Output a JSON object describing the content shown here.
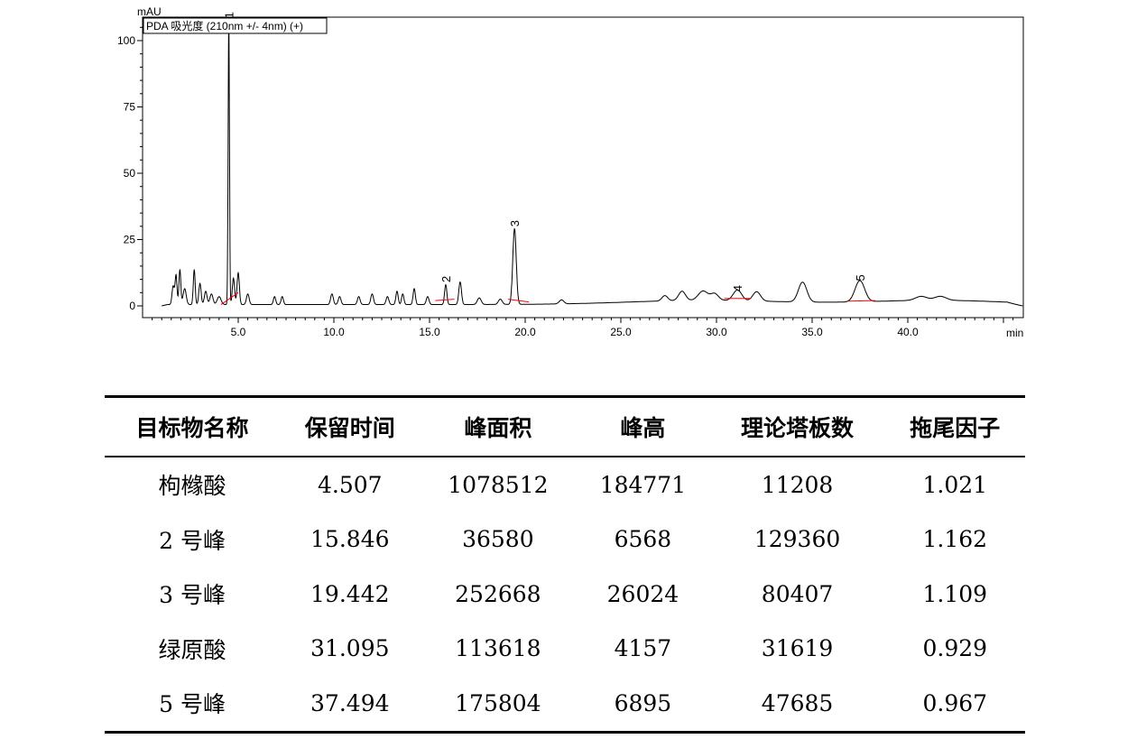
{
  "chart_data": {
    "type": "line",
    "ylabel": "mAU",
    "xlabel": "min",
    "legend": "PDA 吸光度 (210nm +/- 4nm) (+)",
    "legend_position": "top-left",
    "xlim": [
      0.0,
      46.0
    ],
    "ylim": [
      -5.0,
      110.0
    ],
    "xticks": [
      "5.0",
      "10.0",
      "15.0",
      "20.0",
      "25.0",
      "30.0",
      "35.0",
      "40.0"
    ],
    "yticks": [
      "0",
      "25",
      "50",
      "75",
      "100"
    ],
    "grid": false,
    "baseline": 0.5,
    "peaks": [
      {
        "t": 1.6,
        "h": 7,
        "w": 0.06
      },
      {
        "t": 1.75,
        "h": 11,
        "w": 0.05
      },
      {
        "t": 1.95,
        "h": 13,
        "w": 0.05
      },
      {
        "t": 2.2,
        "h": 6,
        "w": 0.08
      },
      {
        "t": 2.7,
        "h": 13,
        "w": 0.05
      },
      {
        "t": 3.0,
        "h": 8,
        "w": 0.06
      },
      {
        "t": 3.3,
        "h": 5,
        "w": 0.07
      },
      {
        "t": 3.6,
        "h": 4,
        "w": 0.08
      },
      {
        "t": 4.0,
        "h": 3,
        "w": 0.1
      },
      {
        "t": 4.507,
        "h": 107,
        "w": 0.035
      },
      {
        "t": 4.75,
        "h": 10,
        "w": 0.06
      },
      {
        "t": 5.0,
        "h": 12,
        "w": 0.06
      },
      {
        "t": 5.5,
        "h": 4,
        "w": 0.07
      },
      {
        "t": 6.9,
        "h": 3,
        "w": 0.06
      },
      {
        "t": 7.3,
        "h": 3,
        "w": 0.06
      },
      {
        "t": 9.9,
        "h": 4,
        "w": 0.07
      },
      {
        "t": 10.3,
        "h": 3,
        "w": 0.07
      },
      {
        "t": 11.3,
        "h": 3,
        "w": 0.07
      },
      {
        "t": 12.0,
        "h": 4,
        "w": 0.07
      },
      {
        "t": 12.8,
        "h": 3,
        "w": 0.07
      },
      {
        "t": 13.3,
        "h": 5,
        "w": 0.06
      },
      {
        "t": 13.6,
        "h": 4,
        "w": 0.06
      },
      {
        "t": 14.2,
        "h": 6,
        "w": 0.06
      },
      {
        "t": 14.9,
        "h": 3,
        "w": 0.07
      },
      {
        "t": 15.846,
        "h": 7.5,
        "w": 0.06
      },
      {
        "t": 16.6,
        "h": 8.5,
        "w": 0.07
      },
      {
        "t": 17.6,
        "h": 2.5,
        "w": 0.1
      },
      {
        "t": 18.7,
        "h": 2,
        "w": 0.1
      },
      {
        "t": 19.442,
        "h": 28.5,
        "w": 0.09
      },
      {
        "t": 21.9,
        "h": 1.5,
        "w": 0.12
      },
      {
        "t": 27.3,
        "h": 2,
        "w": 0.15
      },
      {
        "t": 28.2,
        "h": 3.5,
        "w": 0.18
      },
      {
        "t": 29.3,
        "h": 3.5,
        "w": 0.25
      },
      {
        "t": 29.9,
        "h": 2.5,
        "w": 0.2
      },
      {
        "t": 31.095,
        "h": 4,
        "w": 0.22
      },
      {
        "t": 32.1,
        "h": 3.5,
        "w": 0.2
      },
      {
        "t": 34.5,
        "h": 7.5,
        "w": 0.22
      },
      {
        "t": 37.494,
        "h": 8,
        "w": 0.25
      },
      {
        "t": 40.7,
        "h": 1.5,
        "w": 0.3
      },
      {
        "t": 41.7,
        "h": 1.5,
        "w": 0.3
      }
    ],
    "broad": [
      {
        "t": 29.5,
        "h": 1.6,
        "w": 4.0
      },
      {
        "t": 41.5,
        "h": 1.6,
        "w": 3.5
      }
    ],
    "peak_labels": [
      {
        "label": "1",
        "t": 4.507,
        "h": 107
      },
      {
        "label": "2",
        "t": 15.846,
        "h": 7.5
      },
      {
        "label": "3",
        "t": 19.442,
        "h": 28.5
      },
      {
        "label": "4",
        "t": 31.095,
        "h": 4
      },
      {
        "label": "5",
        "t": 37.494,
        "h": 8
      }
    ],
    "integration_baselines": [
      {
        "from": 4.1,
        "to": 5.0,
        "y0": 0.5,
        "y1": 5.0
      },
      {
        "from": 15.3,
        "to": 16.3,
        "y0": 2.0,
        "y1": 2.5
      },
      {
        "from": 19.1,
        "to": 20.2,
        "y0": 2.5,
        "y1": 1.5
      },
      {
        "from": 30.4,
        "to": 31.8,
        "y0": 2.8,
        "y1": 2.8
      },
      {
        "from": 36.9,
        "to": 38.3,
        "y0": 1.8,
        "y1": 2.0
      }
    ]
  },
  "table": {
    "headers": [
      "目标物名称",
      "保留时间",
      "峰面积",
      "峰高",
      "理论塔板数",
      "拖尾因子"
    ],
    "rows": [
      [
        "枸橼酸",
        "4.507",
        "1078512",
        "184771",
        "11208",
        "1.021"
      ],
      [
        "2 号峰",
        "15.846",
        "36580",
        "6568",
        "129360",
        "1.162"
      ],
      [
        "3 号峰",
        "19.442",
        "252668",
        "26024",
        "80407",
        "1.109"
      ],
      [
        "绿原酸",
        "31.095",
        "113618",
        "4157",
        "31619",
        "0.929"
      ],
      [
        "5 号峰",
        "37.494",
        "175804",
        "6895",
        "47685",
        "0.967"
      ]
    ]
  }
}
